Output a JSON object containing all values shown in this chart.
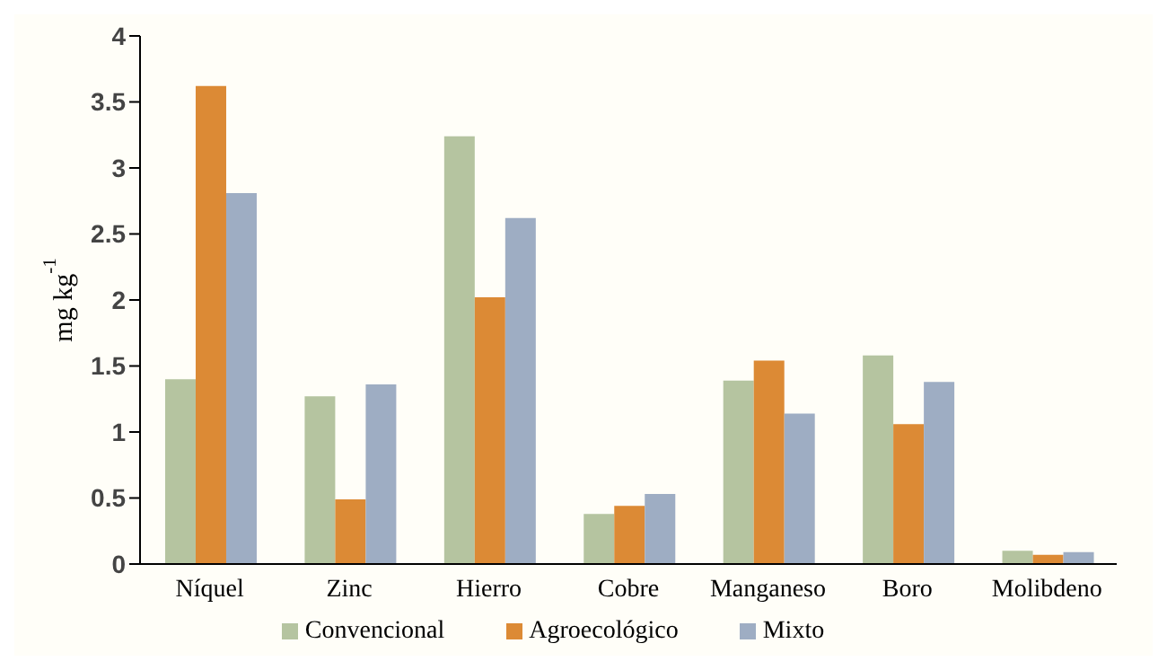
{
  "chart_data": {
    "type": "bar",
    "ylabel": "mg kg$^{-1}$",
    "categories": [
      "Níquel",
      "Zinc",
      "Hierro",
      "Cobre",
      "Manganeso",
      "Boro",
      "Molibdeno"
    ],
    "series": [
      {
        "name": "Convencional",
        "color": "#b5c4a0",
        "values": [
          1.4,
          1.27,
          3.24,
          0.38,
          1.39,
          1.58,
          0.1
        ]
      },
      {
        "name": "Agroecológico",
        "color": "#dc8a35",
        "values": [
          3.62,
          0.49,
          2.02,
          0.44,
          1.54,
          1.06,
          0.07
        ]
      },
      {
        "name": "Mixto",
        "color": "#9eadc3",
        "values": [
          2.81,
          1.36,
          2.62,
          0.53,
          1.14,
          1.38,
          0.09
        ]
      }
    ],
    "ylim": [
      0,
      4
    ],
    "yticks": [
      0,
      {
        "value": 0.5,
        "label": "0.5"
      },
      1,
      {
        "value": 1.5,
        "label": "1.5"
      },
      2,
      {
        "value": 2.5,
        "label": "2.5"
      },
      3,
      {
        "value": 3.5,
        "label": "3.5"
      },
      4
    ],
    "grid": false,
    "legend": "bottom"
  }
}
